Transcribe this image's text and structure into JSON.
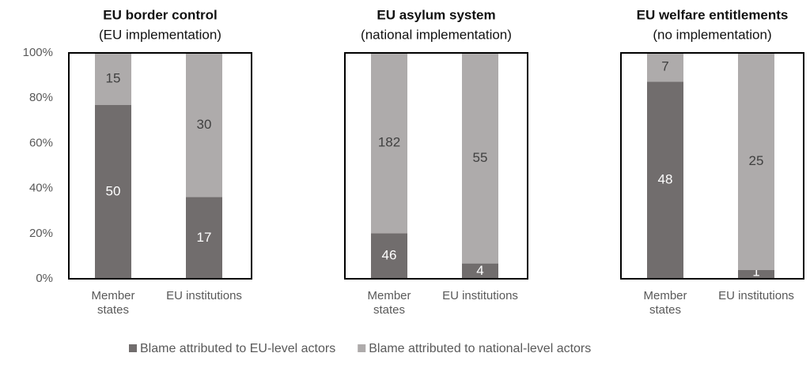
{
  "legend": {
    "items": [
      {
        "name": "Blame attributed to EU-level actors",
        "color": "#716d6d"
      },
      {
        "name": "Blame attributed to national-level actors",
        "color": "#aeabab"
      }
    ]
  },
  "chart_data": [
    {
      "type": "bar",
      "stack": "percent",
      "title": "EU border control",
      "subtitle": "(EU implementation)",
      "categories": [
        "Member states",
        "EU institutions"
      ],
      "series": [
        {
          "values": [
            50,
            17
          ]
        },
        {
          "values": [
            15,
            30
          ]
        }
      ],
      "ylim": [
        0,
        100
      ],
      "yticks": [
        {
          "value": 0,
          "label": "0%"
        },
        {
          "value": 20,
          "label": "20%"
        },
        {
          "value": 40,
          "label": "40%"
        },
        {
          "value": 60,
          "label": "60%"
        },
        {
          "value": 80,
          "label": "80%"
        },
        {
          "value": 100,
          "label": "100%"
        }
      ]
    },
    {
      "type": "bar",
      "stack": "percent",
      "title": "EU asylum system",
      "subtitle": "(national implementation)",
      "categories": [
        "Member states",
        "EU institutions"
      ],
      "series": [
        {
          "values": [
            46,
            4
          ]
        },
        {
          "values": [
            182,
            55
          ]
        }
      ],
      "ylim": [
        0,
        100
      ]
    },
    {
      "type": "bar",
      "stack": "percent",
      "title": "EU welfare entitlements",
      "subtitle": "(no implementation)",
      "categories": [
        "Member states",
        "EU institutions"
      ],
      "series": [
        {
          "values": [
            48,
            1
          ]
        },
        {
          "values": [
            7,
            25
          ]
        }
      ],
      "ylim": [
        0,
        100
      ]
    }
  ]
}
